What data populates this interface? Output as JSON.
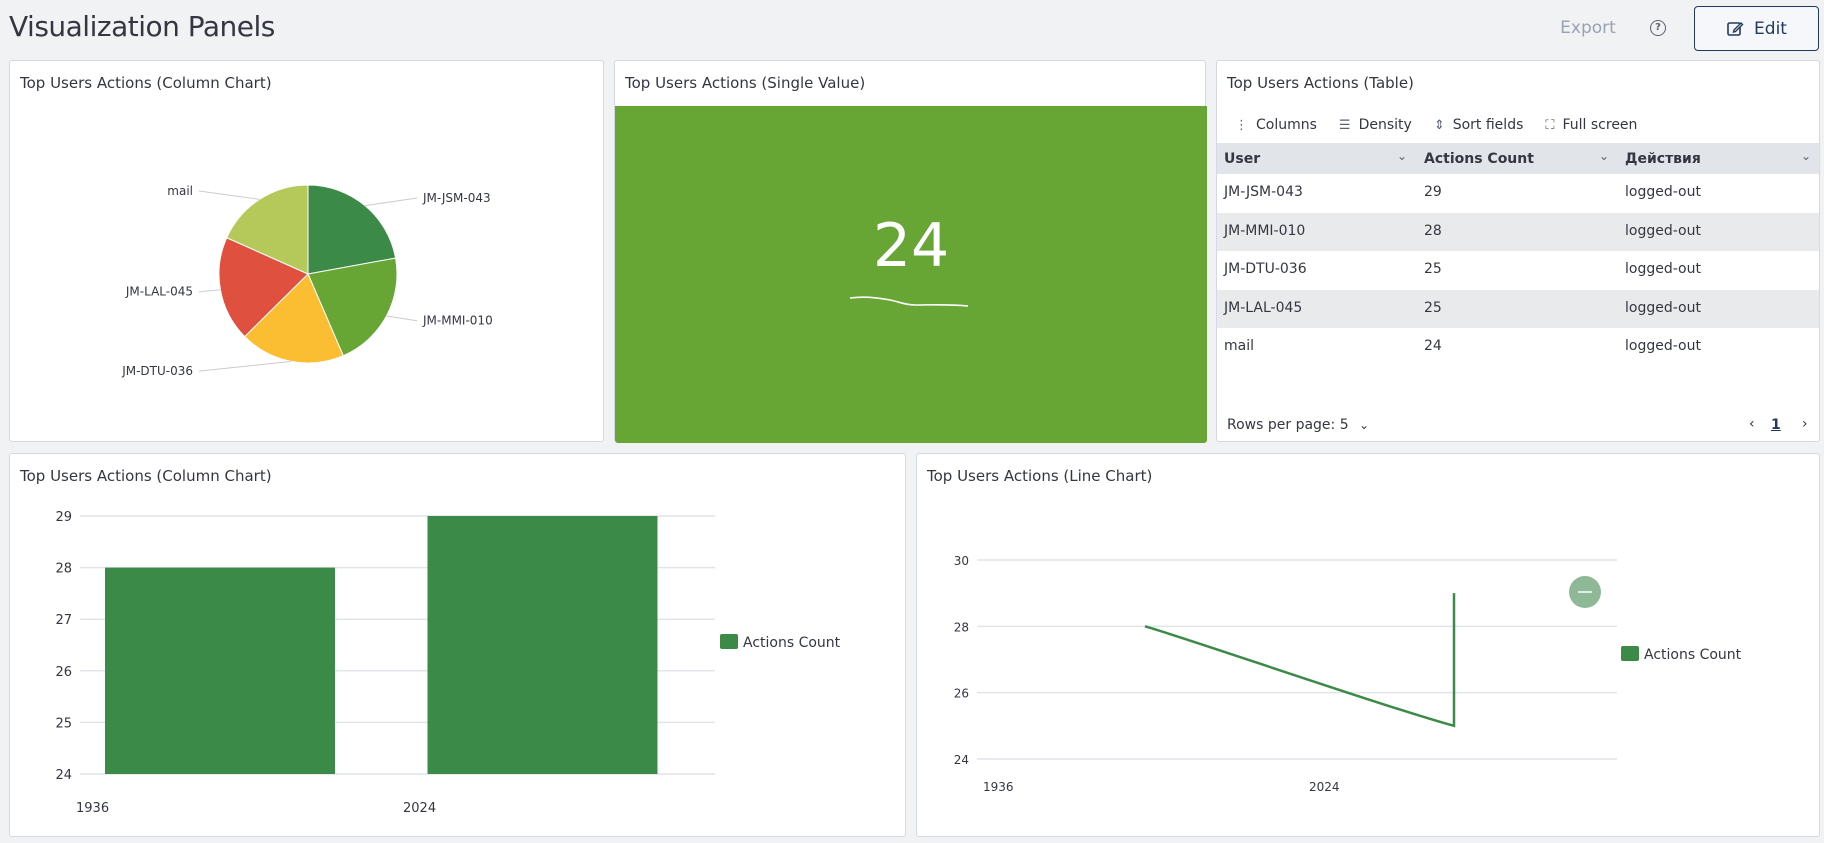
{
  "header": {
    "title": "Visualization Panels",
    "export_label": "Export",
    "help_icon": "?",
    "edit_label": "Edit"
  },
  "panels": {
    "pie": {
      "title": "Top Users Actions (Column Chart)"
    },
    "single": {
      "title": "Top Users Actions (Single Value)",
      "value": "24",
      "bg_color": "#67a535"
    },
    "table": {
      "title": "Top Users Actions (Table)",
      "toolbar": {
        "columns": "Columns",
        "density": "Density",
        "sort": "Sort fields",
        "fullscreen": "Full screen"
      },
      "headers": [
        "User",
        "Actions Count",
        "Действия"
      ],
      "rows": [
        [
          "JM-JSM-043",
          "29",
          "logged-out"
        ],
        [
          "JM-MMI-010",
          "28",
          "logged-out"
        ],
        [
          "JM-DTU-036",
          "25",
          "logged-out"
        ],
        [
          "JM-LAL-045",
          "25",
          "logged-out"
        ],
        [
          "mail",
          "24",
          "logged-out"
        ]
      ],
      "rows_per_page": "Rows per page: 5",
      "current_page": "1"
    },
    "bar": {
      "title": "Top Users Actions (Column Chart)"
    },
    "line": {
      "title": "Top Users Actions (Line Chart)"
    }
  },
  "chart_data": [
    {
      "type": "pie",
      "slices": [
        {
          "label": "JM-JSM-043",
          "value": 29,
          "color": "#3c8a47"
        },
        {
          "label": "JM-MMI-010",
          "value": 28,
          "color": "#67a535"
        },
        {
          "label": "JM-DTU-036",
          "value": 25,
          "color": "#fbbe32"
        },
        {
          "label": "JM-LAL-045",
          "value": 25,
          "color": "#e0503f"
        },
        {
          "label": "mail",
          "value": 24,
          "color": "#b5c95a"
        }
      ]
    },
    {
      "type": "bar",
      "categories": [
        "1936",
        "2024"
      ],
      "series": [
        {
          "name": "Actions Count",
          "values": [
            28,
            29
          ],
          "color": "#3c8a47"
        }
      ],
      "ylim": [
        24,
        29
      ],
      "yticks": [
        24,
        25,
        26,
        27,
        28,
        29
      ],
      "legend": "right"
    },
    {
      "type": "line",
      "xticks": [
        "1936",
        "2024"
      ],
      "series": [
        {
          "name": "Actions Count",
          "values": [
            28,
            25,
            29
          ],
          "color": "#3c8a47"
        }
      ],
      "ylim": [
        24,
        30
      ],
      "yticks": [
        24,
        26,
        28,
        30
      ],
      "legend": "right"
    }
  ]
}
